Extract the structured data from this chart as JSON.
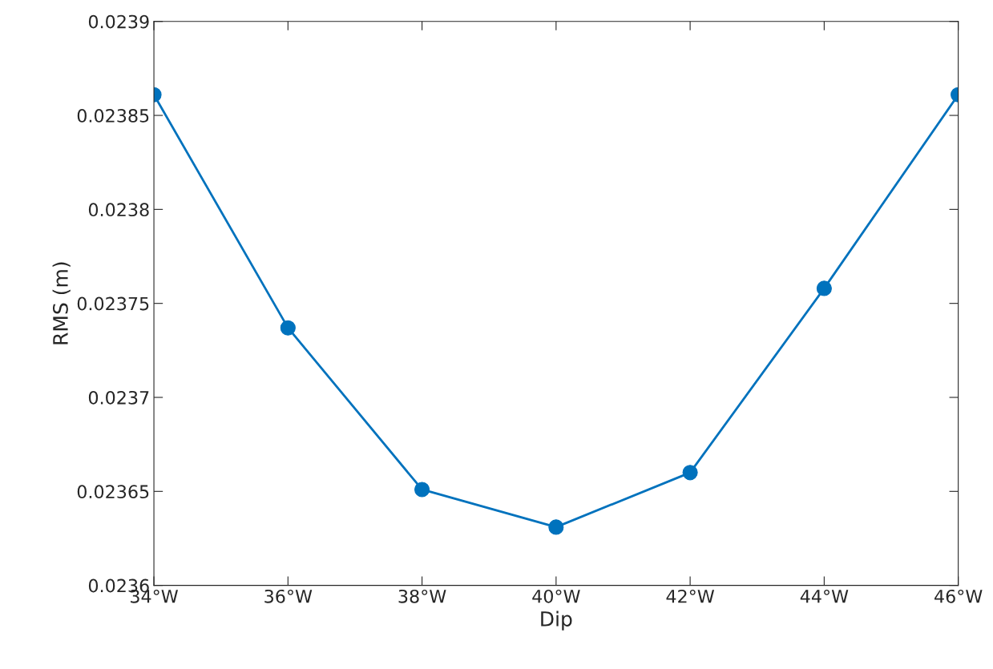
{
  "chart_data": {
    "type": "line",
    "xlabel": "Dip",
    "ylabel": "RMS (m)",
    "x": [
      34,
      36,
      38,
      40,
      42,
      44,
      46
    ],
    "series": [
      {
        "color": "#0072bd",
        "values": [
          0.023861,
          0.023737,
          0.023651,
          0.023631,
          0.02366,
          0.023758,
          0.023861
        ]
      }
    ],
    "xlim": [
      34,
      46
    ],
    "xticks": [
      {
        "value": 34,
        "label": "34°W"
      },
      {
        "value": 36,
        "label": "36°W"
      },
      {
        "value": 38,
        "label": "38°W"
      },
      {
        "value": 40,
        "label": "40°W"
      },
      {
        "value": 42,
        "label": "42°W"
      },
      {
        "value": 44,
        "label": "44°W"
      },
      {
        "value": 46,
        "label": "46°W"
      }
    ],
    "ylim": [
      0.0236,
      0.0239
    ],
    "yticks": [
      0.0236,
      0.02365,
      0.0237,
      0.02375,
      0.0238,
      0.02385,
      0.0239
    ],
    "marker": "circle",
    "line_style": "solid",
    "grid": false
  }
}
